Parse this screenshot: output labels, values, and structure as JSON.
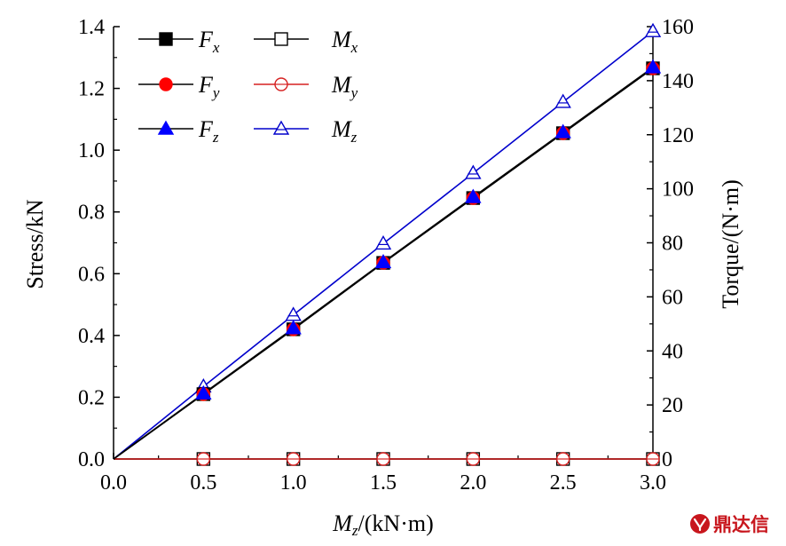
{
  "chart_data": {
    "type": "line",
    "xlabel": {
      "main": "M",
      "sub": "z",
      "rest": "/(kN·m)"
    },
    "ylabel_left": "Stress/kN",
    "ylabel_right": "Torque/(N·m)",
    "xlim": [
      0,
      3.0
    ],
    "ylim_left": [
      0,
      1.4
    ],
    "ylim_right": [
      0,
      160
    ],
    "x_ticks": [
      "0.0",
      "0.5",
      "1.0",
      "1.5",
      "2.0",
      "2.5",
      "3.0"
    ],
    "y_left_ticks": [
      "0.0",
      "0.2",
      "0.4",
      "0.6",
      "0.8",
      "1.0",
      "1.2",
      "1.4"
    ],
    "y_right_ticks": [
      "0",
      "20",
      "40",
      "60",
      "80",
      "100",
      "120",
      "140",
      "160"
    ],
    "legend_position": "top-left",
    "grid": false,
    "x": [
      0,
      0.5,
      1.0,
      1.5,
      2.0,
      2.5,
      3.0
    ],
    "series": [
      {
        "name": "F",
        "sub": "x",
        "axis": "left",
        "marker": "square-filled",
        "color": "#000000",
        "line_color": "#000000",
        "values": [
          0,
          0.21,
          0.42,
          0.635,
          0.845,
          1.055,
          1.265
        ]
      },
      {
        "name": "F",
        "sub": "y",
        "axis": "left",
        "marker": "circle-filled",
        "color": "#ff0000",
        "line_color": "#000000",
        "values": [
          0,
          0.21,
          0.42,
          0.635,
          0.845,
          1.055,
          1.265
        ]
      },
      {
        "name": "F",
        "sub": "z",
        "axis": "left",
        "marker": "triangle-filled",
        "color": "#0000ff",
        "line_color": "#000000",
        "values": [
          0,
          0.212,
          0.423,
          0.637,
          0.848,
          1.058,
          1.268
        ]
      },
      {
        "name": "M",
        "sub": "x",
        "axis": "right",
        "marker": "square-open",
        "color": "#000000",
        "line_color": "#000000",
        "values": [
          0,
          0,
          0,
          0,
          0,
          0,
          0
        ]
      },
      {
        "name": "M",
        "sub": "y",
        "axis": "right",
        "marker": "circle-open",
        "color": "#d62020",
        "line_color": "#d62020",
        "values": [
          0,
          0,
          0,
          0,
          0,
          0,
          0
        ]
      },
      {
        "name": "M",
        "sub": "z",
        "axis": "right",
        "marker": "triangle-open",
        "color": "#0000cc",
        "line_color": "#0000cc",
        "values": [
          0,
          26.8,
          53.3,
          79.7,
          105.8,
          132.1,
          158.3
        ]
      }
    ]
  },
  "watermark": {
    "text": "鼎达信",
    "icon": "seal-icon"
  }
}
